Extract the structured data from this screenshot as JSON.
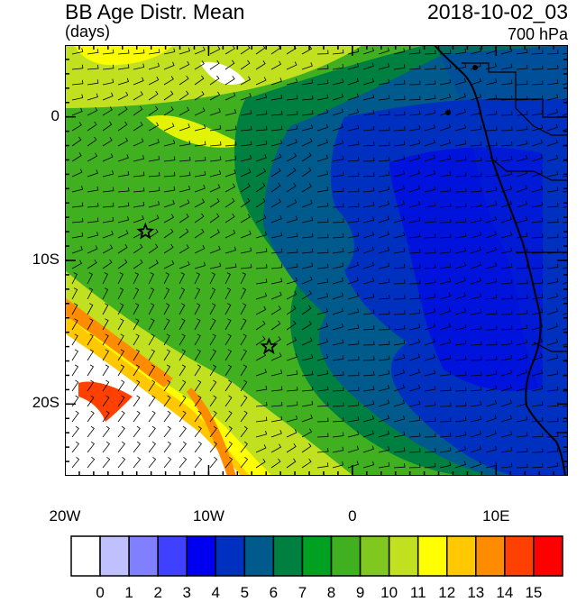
{
  "header": {
    "title": "BB Age Distr. Mean",
    "units": "(days)",
    "datetime": "2018-10-02_03",
    "level": "700 hPa"
  },
  "map": {
    "lon_range": [
      -20,
      15
    ],
    "lat_range": [
      -25,
      5
    ],
    "y_ticks": [
      {
        "label": "0",
        "lat": 0
      },
      {
        "label": "10S",
        "lat": -10
      },
      {
        "label": "20S",
        "lat": -20
      }
    ],
    "x_ticks": [
      {
        "label": "20W",
        "lon": -20
      },
      {
        "label": "10W",
        "lon": -10
      },
      {
        "label": "0",
        "lon": 0
      },
      {
        "label": "10E",
        "lon": 10
      }
    ],
    "markers": [
      {
        "name": "star-marker-1",
        "lon": -14.4,
        "lat": -8
      },
      {
        "name": "star-marker-2",
        "lon": -5.8,
        "lat": -16
      }
    ]
  },
  "colorbar": {
    "labels": [
      "0",
      "1",
      "2",
      "3",
      "4",
      "5",
      "6",
      "7",
      "8",
      "9",
      "10",
      "11",
      "12",
      "13",
      "14",
      "15"
    ],
    "colors": [
      "#ffffff",
      "#c0c0ff",
      "#8080ff",
      "#4040ff",
      "#0000f0",
      "#0030c0",
      "#005a8c",
      "#008040",
      "#00a020",
      "#40b020",
      "#80c820",
      "#c0e020",
      "#ffff00",
      "#ffc800",
      "#ff8c00",
      "#ff4000",
      "#ff0000"
    ]
  }
}
